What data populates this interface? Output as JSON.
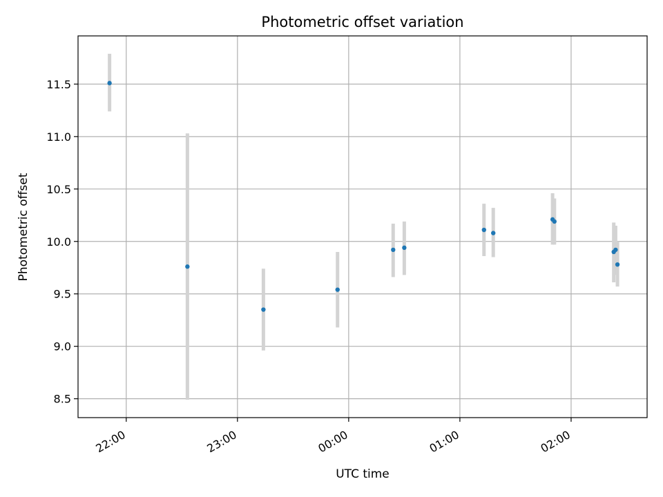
{
  "chart_data": {
    "type": "scatter",
    "title": "Photometric offset variation",
    "xlabel": "UTC time",
    "ylabel": "Photometric offset",
    "xlim": [
      "21:34",
      "02:41"
    ],
    "ylim": [
      8.32,
      11.96
    ],
    "x_ticks": [
      "22:00",
      "23:00",
      "00:00",
      "01:00",
      "02:00"
    ],
    "y_ticks": [
      "8.5",
      "9.0",
      "9.5",
      "10.0",
      "10.5",
      "11.0",
      "11.5"
    ],
    "grid": true,
    "legend": "none",
    "point_color": "#1f77b4",
    "errorbar_color": "#d3d3d3",
    "points": [
      {
        "t": "21:51",
        "y": 11.51,
        "lo": 11.24,
        "hi": 11.79
      },
      {
        "t": "22:33",
        "y": 9.76,
        "lo": 8.49,
        "hi": 11.03
      },
      {
        "t": "23:14",
        "y": 9.35,
        "lo": 8.96,
        "hi": 9.74
      },
      {
        "t": "23:54",
        "y": 9.54,
        "lo": 9.18,
        "hi": 9.9
      },
      {
        "t": "00:24",
        "y": 9.92,
        "lo": 9.66,
        "hi": 10.17
      },
      {
        "t": "00:30",
        "y": 9.94,
        "lo": 9.68,
        "hi": 10.19
      },
      {
        "t": "01:13",
        "y": 10.11,
        "lo": 9.86,
        "hi": 10.36
      },
      {
        "t": "01:18",
        "y": 10.08,
        "lo": 9.85,
        "hi": 10.32
      },
      {
        "t": "01:50",
        "y": 10.21,
        "lo": 9.97,
        "hi": 10.46
      },
      {
        "t": "01:51",
        "y": 10.19,
        "lo": 9.97,
        "hi": 10.41
      },
      {
        "t": "02:23",
        "y": 9.9,
        "lo": 9.61,
        "hi": 10.18
      },
      {
        "t": "02:24",
        "y": 9.92,
        "lo": 9.68,
        "hi": 10.15
      },
      {
        "t": "02:25",
        "y": 9.78,
        "lo": 9.57,
        "hi": 10.0
      }
    ]
  }
}
